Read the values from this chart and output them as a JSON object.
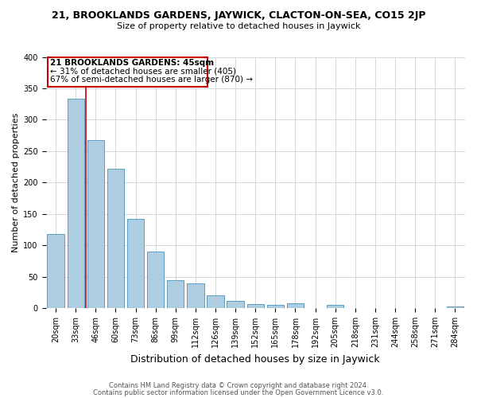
{
  "title": "21, BROOKLANDS GARDENS, JAYWICK, CLACTON-ON-SEA, CO15 2JP",
  "subtitle": "Size of property relative to detached houses in Jaywick",
  "xlabel": "Distribution of detached houses by size in Jaywick",
  "ylabel": "Number of detached properties",
  "bar_color": "#aecde1",
  "bar_edge_color": "#5b9dc0",
  "categories": [
    "20sqm",
    "33sqm",
    "46sqm",
    "60sqm",
    "73sqm",
    "86sqm",
    "99sqm",
    "112sqm",
    "126sqm",
    "139sqm",
    "152sqm",
    "165sqm",
    "178sqm",
    "192sqm",
    "205sqm",
    "218sqm",
    "231sqm",
    "244sqm",
    "258sqm",
    "271sqm",
    "284sqm"
  ],
  "values": [
    118,
    333,
    267,
    222,
    142,
    90,
    45,
    40,
    20,
    11,
    7,
    5,
    8,
    0,
    5,
    0,
    0,
    0,
    0,
    0,
    3
  ],
  "ylim": [
    0,
    400
  ],
  "yticks": [
    0,
    50,
    100,
    150,
    200,
    250,
    300,
    350,
    400
  ],
  "marker_line_color": "#cc0000",
  "annotation_line1": "21 BROOKLANDS GARDENS: 45sqm",
  "annotation_line2": "← 31% of detached houses are smaller (405)",
  "annotation_line3": "67% of semi-detached houses are larger (870) →",
  "footer_line1": "Contains HM Land Registry data © Crown copyright and database right 2024.",
  "footer_line2": "Contains public sector information licensed under the Open Government Licence v3.0.",
  "background_color": "#ffffff",
  "grid_color": "#d0d8e0",
  "title_fontsize": 9,
  "subtitle_fontsize": 8,
  "axis_label_fontsize": 8,
  "tick_fontsize": 7,
  "annotation_fontsize": 7.5,
  "footer_fontsize": 6
}
